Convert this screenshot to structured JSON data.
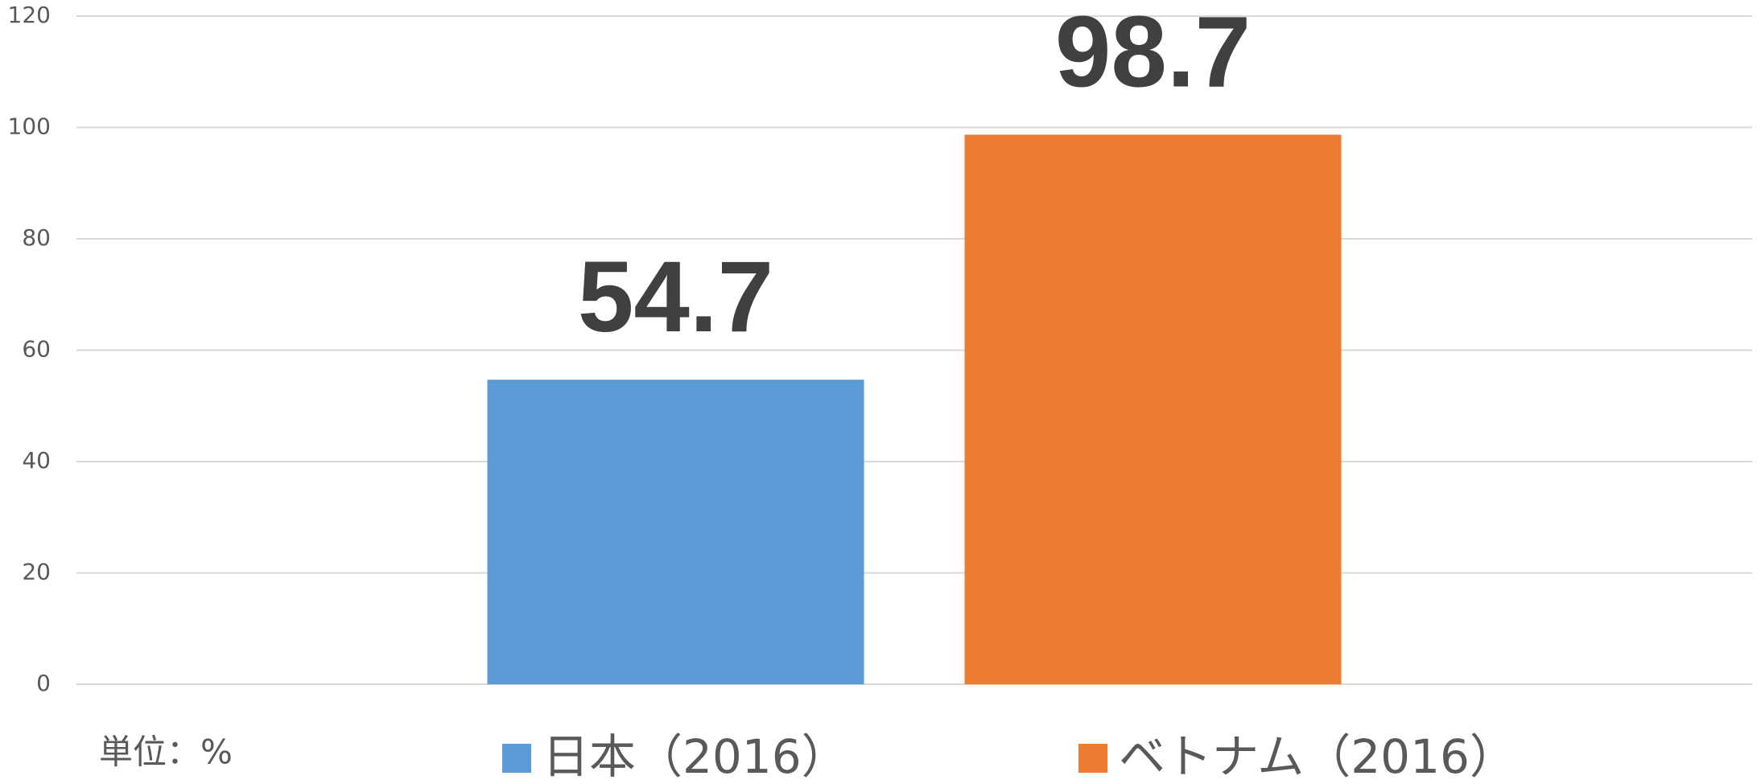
{
  "chart_data": {
    "type": "bar",
    "categories": [
      null
    ],
    "series": [
      {
        "name": "日本（2016）",
        "color": "#5b9bd5",
        "values": [
          54.7
        ]
      },
      {
        "name": "ベトナム（2016）",
        "color": "#ed7d31",
        "values": [
          98.7
        ]
      }
    ],
    "ylim": [
      0,
      120
    ],
    "yticks": [
      0,
      20,
      40,
      60,
      80,
      100,
      120
    ],
    "grid": true,
    "annotation": "単位：%",
    "legend": "bottom"
  }
}
